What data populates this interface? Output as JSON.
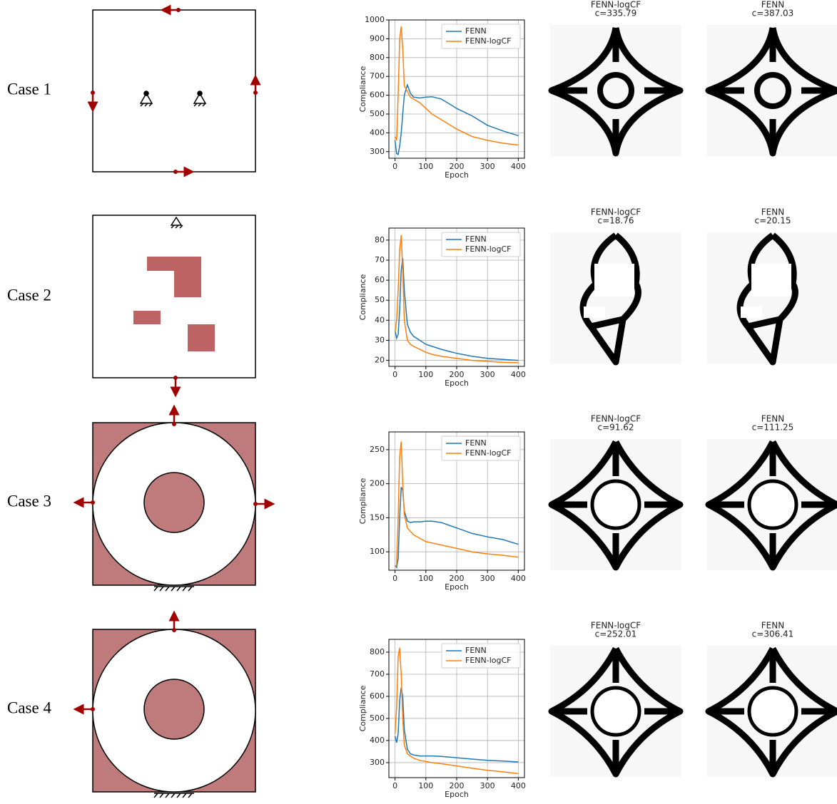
{
  "cases": [
    {
      "label": "Case 1",
      "images": [
        {
          "title": "FENN-logCF",
          "subtitle": "c=335.79"
        },
        {
          "title": "FENN",
          "subtitle": "c=387.03"
        }
      ]
    },
    {
      "label": "Case 2",
      "images": [
        {
          "title": "FENN-logCF",
          "subtitle": "c=18.76"
        },
        {
          "title": "FENN",
          "subtitle": "c=20.15"
        }
      ]
    },
    {
      "label": "Case 3",
      "images": [
        {
          "title": "FENN-logCF",
          "subtitle": "c=91.62"
        },
        {
          "title": "FENN",
          "subtitle": "c=111.25"
        }
      ]
    },
    {
      "label": "Case 4",
      "images": [
        {
          "title": "FENN-logCF",
          "subtitle": "c=252.01"
        },
        {
          "title": "FENN",
          "subtitle": "c=306.41"
        }
      ]
    }
  ],
  "chart_data": [
    {
      "type": "line",
      "x_label": "Epoch",
      "y_label": "Compliance",
      "grid": true,
      "legend": "upper right",
      "x": [
        0,
        5,
        10,
        15,
        20,
        25,
        30,
        40,
        50,
        60,
        80,
        100,
        120,
        150,
        200,
        250,
        300,
        350,
        400
      ],
      "xlim": [
        -20,
        420
      ],
      "xticks": [
        0,
        100,
        200,
        300,
        400
      ],
      "ylim": [
        265,
        1000
      ],
      "yticks": [
        300,
        400,
        500,
        600,
        700,
        800,
        900,
        1000
      ],
      "series": [
        {
          "name": "FENN",
          "color": "#1f77b4",
          "values": [
            360,
            290,
            285,
            330,
            400,
            500,
            600,
            655,
            610,
            590,
            585,
            590,
            592,
            580,
            530,
            490,
            440,
            410,
            385
          ]
        },
        {
          "name": "FENN-logCF",
          "color": "#ff7f0e",
          "values": [
            380,
            360,
            600,
            900,
            965,
            850,
            650,
            620,
            590,
            580,
            560,
            530,
            500,
            470,
            420,
            380,
            360,
            345,
            335
          ]
        }
      ]
    },
    {
      "type": "line",
      "x_label": "Epoch",
      "y_label": "Compliance",
      "grid": true,
      "legend": "upper right",
      "x": [
        0,
        5,
        10,
        15,
        20,
        25,
        30,
        40,
        50,
        60,
        80,
        100,
        120,
        150,
        200,
        250,
        300,
        350,
        400
      ],
      "xlim": [
        -20,
        420
      ],
      "xticks": [
        0,
        100,
        200,
        300,
        400
      ],
      "ylim": [
        17,
        86
      ],
      "yticks": [
        20,
        30,
        40,
        50,
        60,
        70,
        80
      ],
      "series": [
        {
          "name": "FENN",
          "color": "#1f77b4",
          "values": [
            35,
            31,
            33,
            45,
            65,
            71,
            55,
            38,
            34,
            32,
            30,
            28,
            27,
            25.5,
            23.5,
            22,
            21,
            20.5,
            20
          ]
        },
        {
          "name": "FENN-logCF",
          "color": "#ff7f0e",
          "values": [
            34,
            40,
            55,
            75,
            82.5,
            65,
            40,
            30,
            28,
            27,
            25.5,
            24,
            23,
            22,
            21,
            20,
            19.5,
            19,
            18.8
          ]
        }
      ]
    },
    {
      "type": "line",
      "x_label": "Epoch",
      "y_label": "Compliance",
      "grid": true,
      "legend": "upper right",
      "x": [
        0,
        5,
        10,
        15,
        20,
        25,
        30,
        40,
        50,
        60,
        80,
        100,
        120,
        150,
        200,
        250,
        300,
        350,
        400
      ],
      "xlim": [
        -20,
        420
      ],
      "xticks": [
        0,
        100,
        200,
        300,
        400
      ],
      "ylim": [
        73,
        276
      ],
      "yticks": [
        100,
        150,
        200,
        250
      ],
      "series": [
        {
          "name": "FENN",
          "color": "#1f77b4",
          "values": [
            80,
            77,
            90,
            150,
            195,
            190,
            160,
            145,
            143,
            144,
            144,
            145,
            145,
            143,
            135,
            127,
            122,
            118,
            111
          ]
        },
        {
          "name": "FENN-logCF",
          "color": "#ff7f0e",
          "values": [
            78,
            80,
            150,
            240,
            262,
            200,
            155,
            135,
            130,
            125,
            120,
            115,
            113,
            110,
            105,
            100,
            97,
            95,
            92
          ]
        }
      ]
    },
    {
      "type": "line",
      "x_label": "Epoch",
      "y_label": "Compliance",
      "grid": true,
      "legend": "upper right",
      "x": [
        0,
        5,
        10,
        15,
        20,
        25,
        30,
        40,
        50,
        60,
        80,
        100,
        120,
        150,
        200,
        250,
        300,
        350,
        400
      ],
      "xlim": [
        -20,
        420
      ],
      "xticks": [
        0,
        100,
        200,
        300,
        400
      ],
      "ylim": [
        232,
        858
      ],
      "yticks": [
        300,
        400,
        500,
        600,
        700,
        800
      ],
      "series": [
        {
          "name": "FENN",
          "color": "#1f77b4",
          "values": [
            420,
            390,
            430,
            580,
            640,
            600,
            450,
            360,
            340,
            335,
            330,
            330,
            330,
            328,
            322,
            316,
            310,
            307,
            303
          ]
        },
        {
          "name": "FENN-logCF",
          "color": "#ff7f0e",
          "values": [
            430,
            550,
            780,
            820,
            700,
            500,
            380,
            340,
            330,
            320,
            310,
            305,
            300,
            295,
            285,
            275,
            265,
            258,
            250
          ]
        }
      ]
    }
  ]
}
